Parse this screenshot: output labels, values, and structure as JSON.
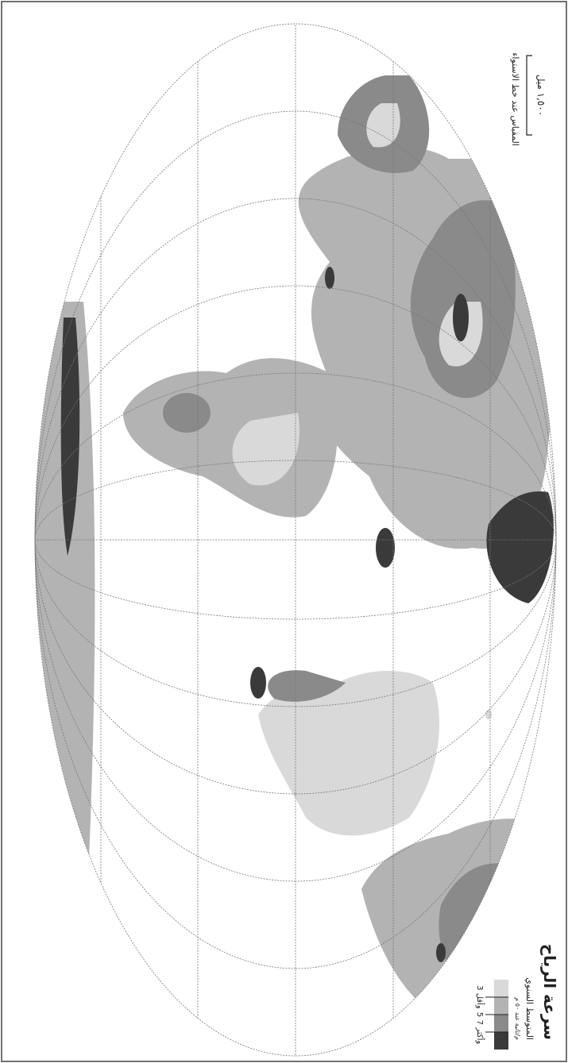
{
  "legend": {
    "title": "سرعة الرياح",
    "subtitle": "المتوسط السنوي",
    "unit": "م/ثانية عند ٥٠ م",
    "items": [
      {
        "label": "7 وأكثر"
      },
      {
        "label": "5"
      },
      {
        "label": "3 وأقل"
      }
    ]
  },
  "scale": {
    "label": "١,٥٠٠ ميل",
    "caption": "المقياس عند خط الاستواء"
  }
}
